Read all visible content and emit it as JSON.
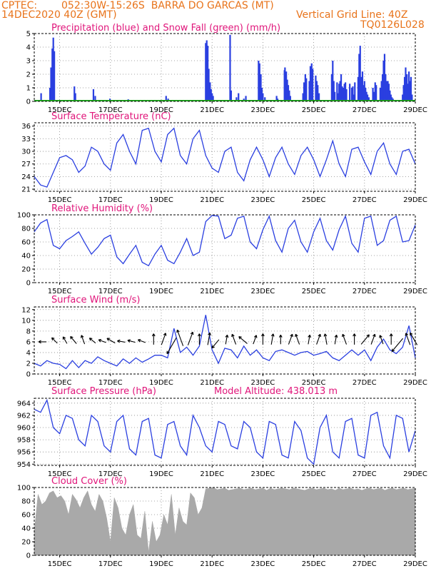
{
  "header": {
    "source": "CPTEC:",
    "location": "052:30W-15:26S  BARRA DO GARCAS (MT)",
    "date": "14DEC2020 40Z (GMT)",
    "grid_note": "Vertical Grid Line: 40Z",
    "code": "TQ0126L028"
  },
  "x_axis": {
    "ticks": [
      "15DEC",
      "17DEC",
      "19DEC",
      "21DEC",
      "23DEC",
      "25DEC",
      "27DEC",
      "29DEC"
    ],
    "tick_days": [
      15,
      17,
      19,
      21,
      23,
      25,
      27,
      29
    ],
    "range_days": [
      14,
      29
    ]
  },
  "colors": {
    "line": "#2a3fe0",
    "snow": "#1fa81f",
    "cloud": "#a9a9a9",
    "title": "#e0157a",
    "header": "#e8731a",
    "barrow": "#000000"
  },
  "chart_data": [
    {
      "type": "bar",
      "title": "Precipitation (blue) and Snow Fall (green) (mm/h)",
      "y_ticks": [
        "0",
        "1",
        "2",
        "3",
        "4",
        "5"
      ],
      "ylim": [
        0,
        5
      ],
      "series": [
        {
          "name": "Precipitation",
          "color": "#2a3fe0",
          "x": [
            14.27,
            14.62,
            14.66,
            14.71,
            14.75,
            14.79,
            15.58,
            15.62,
            16.33,
            16.4,
            16.98,
            17.7,
            18.85,
            19.19,
            19.27,
            20.75,
            20.79,
            20.83,
            20.87,
            20.92,
            20.96,
            21.0,
            21.04,
            21.71,
            21.75,
            21.96,
            22.04,
            22.25,
            22.33,
            22.83,
            22.87,
            22.92,
            22.96,
            23.0,
            23.08,
            23.54,
            23.58,
            23.85,
            23.87,
            23.92,
            23.96,
            24.0,
            24.04,
            24.08,
            24.58,
            24.62,
            24.67,
            24.71,
            24.83,
            24.87,
            24.92,
            24.96,
            25.08,
            25.12,
            25.16,
            25.21,
            25.71,
            25.75,
            25.79,
            25.83,
            25.92,
            25.96,
            26.0,
            26.04,
            26.08,
            26.12,
            26.16,
            26.21,
            26.25,
            26.29,
            26.42,
            26.5,
            26.54,
            26.58,
            26.62,
            26.75,
            26.79,
            26.83,
            26.87,
            26.92,
            26.96,
            27.0,
            27.04,
            27.08,
            27.12,
            27.17,
            27.33,
            27.38,
            27.42,
            27.46,
            27.62,
            27.67,
            27.71,
            27.75,
            27.79,
            27.83,
            27.87,
            27.92,
            27.96,
            28.0,
            28.04,
            28.08,
            28.12,
            28.5,
            28.54,
            28.58,
            28.62,
            28.67,
            28.71,
            28.75,
            28.79,
            28.83,
            28.87
          ],
          "values": [
            0.6,
            1.0,
            2.5,
            3.9,
            4.7,
            3.7,
            1.1,
            0.6,
            0.9,
            0.4,
            0.2,
            0.15,
            0.1,
            0.4,
            0.2,
            4.3,
            4.5,
            4.1,
            2.4,
            1.4,
            0.9,
            0.6,
            0.4,
            4.9,
            0.8,
            0.3,
            0.6,
            0.2,
            0.4,
            3.0,
            2.8,
            2.0,
            1.0,
            0.6,
            0.3,
            0.4,
            0.2,
            2.3,
            2.5,
            2.2,
            1.6,
            1.2,
            0.8,
            0.4,
            0.6,
            1.4,
            2.0,
            1.7,
            1.5,
            2.6,
            2.8,
            2.4,
            1.9,
            1.5,
            1.2,
            0.6,
            2.0,
            3.0,
            1.5,
            0.7,
            1.4,
            0.6,
            1.3,
            1.5,
            2.0,
            1.1,
            1.0,
            1.3,
            1.4,
            0.9,
            1.3,
            1.0,
            1.1,
            0.5,
            1.4,
            1.8,
            3.5,
            4.1,
            1.8,
            2.2,
            1.2,
            1.5,
            1.0,
            0.7,
            0.5,
            0.3,
            1.0,
            0.7,
            1.4,
            1.2,
            1.0,
            1.5,
            2.0,
            3.0,
            3.5,
            2.0,
            1.5,
            1.5,
            1.3,
            0.8,
            0.5,
            0.3,
            0.2,
            0.5,
            1.2,
            1.8,
            2.5,
            2.0,
            1.3,
            2.2,
            1.5,
            1.8,
            0.5
          ]
        },
        {
          "name": "Snow Fall",
          "color": "#1fa81f",
          "x": [
            14.0,
            29.0
          ],
          "values": [
            0,
            0
          ]
        }
      ]
    },
    {
      "type": "line",
      "title": "Surface Temperature (nC)",
      "y_ticks": [
        "21",
        "24",
        "27",
        "30",
        "33",
        "36"
      ],
      "ylim": [
        20.5,
        36.8
      ],
      "x": [
        14.0,
        14.25,
        14.5,
        14.75,
        15.0,
        15.25,
        15.5,
        15.75,
        16.0,
        16.25,
        16.5,
        16.75,
        17.0,
        17.25,
        17.5,
        17.75,
        18.0,
        18.25,
        18.5,
        18.75,
        19.0,
        19.25,
        19.5,
        19.75,
        20.0,
        20.25,
        20.5,
        20.75,
        21.0,
        21.25,
        21.5,
        21.75,
        22.0,
        22.25,
        22.5,
        22.75,
        23.0,
        23.25,
        23.5,
        23.75,
        24.0,
        24.25,
        24.5,
        24.75,
        25.0,
        25.25,
        25.5,
        25.75,
        26.0,
        26.25,
        26.5,
        26.75,
        27.0,
        27.25,
        27.5,
        27.75,
        28.0,
        28.25,
        28.5,
        28.75,
        29.0
      ],
      "values": [
        24,
        22,
        21.5,
        25,
        28.5,
        29,
        28,
        25,
        26.5,
        31,
        30,
        27,
        25.5,
        32,
        34,
        30,
        27,
        35,
        35.5,
        30,
        27.5,
        34,
        35.5,
        29,
        27,
        33,
        35,
        29,
        26,
        25,
        30,
        31,
        25,
        23,
        28,
        31,
        28,
        24,
        28.5,
        31,
        27,
        24.5,
        29,
        31,
        28,
        24,
        28,
        32.5,
        27,
        24,
        30.5,
        31,
        27.5,
        24.5,
        30,
        32,
        27,
        24.5,
        30,
        30.5,
        27
      ]
    },
    {
      "type": "line",
      "title": "Relative Humidity (%)",
      "y_ticks": [
        "0",
        "20",
        "40",
        "60",
        "80",
        "100"
      ],
      "ylim": [
        0,
        100
      ],
      "x": [
        14.0,
        14.25,
        14.5,
        14.75,
        15.0,
        15.25,
        15.5,
        15.75,
        16.0,
        16.25,
        16.5,
        16.75,
        17.0,
        17.25,
        17.5,
        17.75,
        18.0,
        18.25,
        18.5,
        18.75,
        19.0,
        19.25,
        19.5,
        19.75,
        20.0,
        20.25,
        20.5,
        20.75,
        21.0,
        21.25,
        21.5,
        21.75,
        22.0,
        22.25,
        22.5,
        22.75,
        23.0,
        23.25,
        23.5,
        23.75,
        24.0,
        24.25,
        24.5,
        24.75,
        25.0,
        25.25,
        25.5,
        25.75,
        26.0,
        26.25,
        26.5,
        26.75,
        27.0,
        27.25,
        27.5,
        27.75,
        28.0,
        28.25,
        28.5,
        28.75,
        29.0
      ],
      "values": [
        75,
        88,
        93,
        55,
        50,
        62,
        68,
        75,
        58,
        42,
        52,
        65,
        70,
        38,
        28,
        42,
        55,
        30,
        25,
        42,
        55,
        33,
        28,
        45,
        65,
        40,
        45,
        90,
        99,
        98,
        65,
        70,
        95,
        98,
        60,
        50,
        78,
        98,
        62,
        45,
        80,
        92,
        60,
        45,
        75,
        95,
        62,
        48,
        78,
        98,
        58,
        45,
        95,
        98,
        55,
        62,
        92,
        98,
        60,
        62,
        85
      ]
    },
    {
      "type": "line",
      "title": "Surface Wind (m/s)",
      "y_ticks": [
        "0",
        "2",
        "4",
        "6",
        "8",
        "10",
        "12"
      ],
      "ylim": [
        0,
        12.5
      ],
      "x": [
        14.0,
        14.25,
        14.5,
        14.75,
        15.0,
        15.25,
        15.5,
        15.75,
        16.0,
        16.25,
        16.5,
        16.75,
        17.0,
        17.25,
        17.5,
        17.75,
        18.0,
        18.25,
        18.5,
        18.75,
        19.0,
        19.25,
        19.5,
        19.75,
        20.0,
        20.25,
        20.5,
        20.75,
        21.0,
        21.25,
        21.5,
        21.75,
        22.0,
        22.25,
        22.5,
        22.75,
        23.0,
        23.25,
        23.5,
        23.75,
        24.0,
        24.25,
        24.5,
        24.75,
        25.0,
        25.25,
        25.5,
        25.75,
        26.0,
        26.25,
        26.5,
        26.75,
        27.0,
        27.25,
        27.5,
        27.75,
        28.0,
        28.25,
        28.5,
        28.75,
        29.0
      ],
      "values": [
        2,
        1.5,
        2.5,
        2,
        1.8,
        1,
        2.5,
        1.2,
        2.5,
        2,
        3.2,
        2.5,
        2,
        1.5,
        2.8,
        2,
        3,
        2.2,
        2.8,
        3.5,
        3.5,
        3,
        8.5,
        4,
        5,
        3.5,
        5.2,
        11,
        4.5,
        2,
        4.8,
        4.5,
        3,
        5.2,
        3.5,
        4.5,
        3,
        2.5,
        4.2,
        4.5,
        4,
        3.5,
        4,
        4.2,
        3.5,
        3.8,
        4.2,
        3,
        2.5,
        3.5,
        4.5,
        3.5,
        4.5,
        2.5,
        5,
        6.5,
        4.5,
        3.8,
        5,
        9,
        3
      ]
    },
    {
      "type": "line",
      "title": "Surface Pressure (hPa)",
      "subtitle": "Model Altitude: 438.013 m",
      "y_ticks": [
        "954",
        "956",
        "958",
        "960",
        "962",
        "964"
      ],
      "ylim": [
        953.8,
        964.8
      ],
      "x": [
        14.0,
        14.25,
        14.5,
        14.75,
        15.0,
        15.25,
        15.5,
        15.75,
        16.0,
        16.25,
        16.5,
        16.75,
        17.0,
        17.25,
        17.5,
        17.75,
        18.0,
        18.25,
        18.5,
        18.75,
        19.0,
        19.25,
        19.5,
        19.75,
        20.0,
        20.25,
        20.5,
        20.75,
        21.0,
        21.25,
        21.5,
        21.75,
        22.0,
        22.25,
        22.5,
        22.75,
        23.0,
        23.25,
        23.5,
        23.75,
        24.0,
        24.25,
        24.5,
        24.75,
        25.0,
        25.25,
        25.5,
        25.75,
        26.0,
        26.25,
        26.5,
        26.75,
        27.0,
        27.25,
        27.5,
        27.75,
        28.0,
        28.25,
        28.5,
        28.75,
        29.0
      ],
      "values": [
        963,
        962.5,
        964.5,
        960,
        959,
        962,
        961.5,
        958,
        957,
        962,
        961,
        957,
        956,
        961,
        962,
        956.5,
        955.5,
        961,
        961.5,
        955.5,
        955,
        960.5,
        961,
        957,
        955.5,
        962,
        960,
        957,
        956,
        961,
        960.5,
        957,
        956.5,
        961,
        960,
        956,
        955,
        961,
        960.5,
        955.5,
        955,
        961,
        959.5,
        955,
        954,
        960,
        962,
        956,
        955,
        961,
        961.5,
        955.5,
        955,
        962,
        962.5,
        957,
        955,
        962,
        961.5,
        956,
        959.5
      ]
    },
    {
      "type": "area",
      "title": "Cloud Cover (%)",
      "y_ticks": [
        "0",
        "20",
        "40",
        "60",
        "80",
        "100"
      ],
      "ylim": [
        0,
        100
      ],
      "x": [
        14.0,
        14.15,
        14.3,
        14.45,
        14.6,
        14.75,
        14.9,
        15.05,
        15.2,
        15.35,
        15.5,
        15.65,
        15.8,
        15.95,
        16.1,
        16.25,
        16.4,
        16.55,
        16.7,
        16.85,
        17.0,
        17.15,
        17.3,
        17.45,
        17.6,
        17.75,
        17.9,
        18.05,
        18.2,
        18.35,
        18.5,
        18.65,
        18.8,
        18.95,
        19.1,
        19.25,
        19.4,
        19.55,
        19.7,
        19.85,
        20.0,
        20.15,
        20.3,
        20.45,
        20.6,
        20.75,
        20.9,
        21.05,
        21.2,
        21.35,
        21.5,
        21.65,
        21.8,
        21.95,
        22.1,
        22.25,
        22.4,
        22.55,
        22.7,
        22.85,
        23.0,
        23.15,
        23.3,
        23.45,
        23.6,
        23.75,
        23.9,
        24.05,
        24.2,
        24.35,
        24.5,
        24.65,
        24.8,
        24.95,
        25.1,
        25.25,
        25.4,
        25.55,
        25.7,
        25.85,
        26.0,
        26.15,
        26.3,
        26.45,
        26.6,
        26.75,
        26.9,
        27.05,
        27.2,
        27.35,
        27.5,
        27.65,
        27.8,
        27.95,
        28.1,
        28.25,
        28.4,
        28.55,
        28.7,
        28.85,
        29.0
      ],
      "values": [
        35,
        90,
        75,
        80,
        92,
        95,
        85,
        88,
        80,
        60,
        90,
        82,
        70,
        85,
        95,
        75,
        65,
        90,
        80,
        55,
        20,
        85,
        70,
        40,
        30,
        60,
        75,
        30,
        25,
        65,
        5,
        50,
        20,
        30,
        60,
        45,
        90,
        30,
        70,
        50,
        45,
        92,
        85,
        60,
        70,
        98,
        99,
        100,
        97,
        98,
        99,
        96,
        97,
        98,
        99,
        97,
        98,
        99,
        97,
        98,
        99,
        96,
        99,
        97,
        98,
        99,
        98,
        97,
        99,
        98,
        97,
        96,
        98,
        99,
        97,
        98,
        99,
        97,
        98,
        96,
        99,
        97,
        98,
        99,
        97,
        98,
        96,
        98,
        99,
        97,
        98,
        99,
        96,
        98,
        99,
        97,
        98,
        99,
        97,
        98,
        99
      ]
    }
  ],
  "wind_barbs": {
    "x": [
      14.4,
      14.85,
      15.25,
      15.6,
      15.95,
      16.35,
      16.75,
      17.1,
      17.5,
      17.9,
      18.3,
      18.7,
      19.05,
      19.5,
      19.8,
      20.1,
      20.5,
      20.85,
      21.2,
      21.55,
      21.9,
      22.3,
      22.65,
      23.0,
      23.35,
      23.7,
      24.05,
      24.4,
      24.8,
      25.15,
      25.5,
      25.85,
      26.25,
      26.6,
      26.95,
      27.3,
      27.7,
      28.05,
      28.4,
      28.75,
      29.0
    ],
    "dir_deg": [
      270,
      225,
      210,
      220,
      200,
      230,
      250,
      240,
      260,
      255,
      250,
      180,
      160,
      330,
      200,
      160,
      180,
      170,
      320,
      170,
      200,
      230,
      160,
      180,
      170,
      180,
      160,
      200,
      170,
      160,
      190,
      170,
      200,
      180,
      140,
      160,
      200,
      180,
      320,
      200,
      210
    ],
    "speed": [
      2,
      2,
      2,
      3,
      3,
      2,
      2,
      3,
      2,
      2,
      2,
      4,
      5,
      9,
      8,
      6,
      4,
      5,
      4,
      3,
      4,
      4,
      3,
      4,
      4,
      3,
      4,
      4,
      3,
      4,
      4,
      3,
      4,
      4,
      5,
      4,
      3,
      4,
      8,
      5,
      6
    ]
  }
}
